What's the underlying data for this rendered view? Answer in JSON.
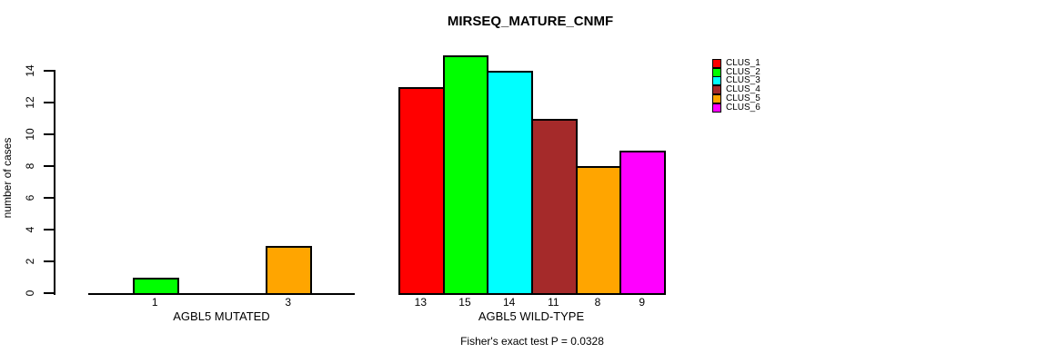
{
  "chart_data": {
    "type": "bar",
    "title": "MIRSEQ_MATURE_CNMF",
    "ylabel": "number of cases",
    "yticks": [
      0,
      2,
      4,
      6,
      8,
      10,
      12,
      14
    ],
    "ylim": [
      0,
      15
    ],
    "grid": false,
    "legend_position": "right",
    "clusters": [
      {
        "name": "CLUS_1",
        "color": "#FF0000"
      },
      {
        "name": "CLUS_2",
        "color": "#00FF00"
      },
      {
        "name": "CLUS_3",
        "color": "#00FFFF"
      },
      {
        "name": "CLUS_4",
        "color": "#A52A2A"
      },
      {
        "name": "CLUS_5",
        "color": "#FFA500"
      },
      {
        "name": "CLUS_6",
        "color": "#FF00FF"
      }
    ],
    "groups": [
      {
        "label": "AGBL5 MUTATED",
        "values": [
          0,
          1,
          0,
          0,
          3,
          0
        ]
      },
      {
        "label": "AGBL5 WILD-TYPE",
        "values": [
          13,
          15,
          14,
          11,
          8,
          9
        ]
      }
    ],
    "annotation": "Fisher's exact test P = 0.0328"
  }
}
